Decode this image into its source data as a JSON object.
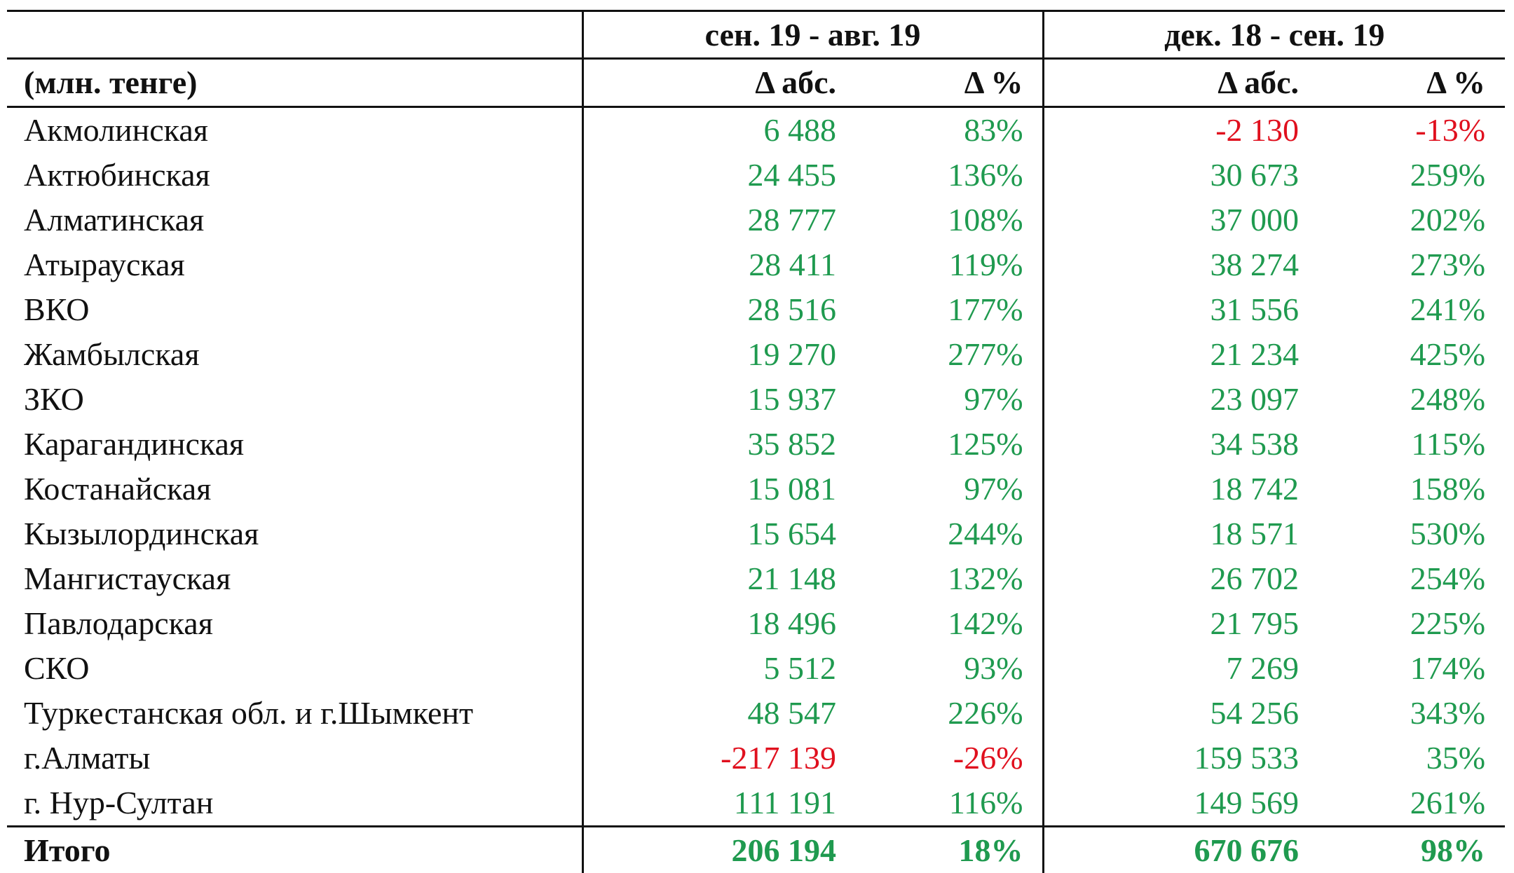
{
  "header": {
    "groups": [
      "сен. 19 - авг. 19",
      "дек. 18 - сен. 19"
    ],
    "unit": "(млн. тенге)",
    "subheaders": [
      "Δ абс.",
      "Δ %",
      "Δ абс.",
      "Δ %"
    ]
  },
  "rows": [
    [
      "Акмолинская",
      "6 488",
      "83%",
      "-2 130",
      "-13%"
    ],
    [
      "Актюбинская",
      "24 455",
      "136%",
      "30 673",
      "259%"
    ],
    [
      "Алматинская",
      "28 777",
      "108%",
      "37 000",
      "202%"
    ],
    [
      "Атырауская",
      "28 411",
      "119%",
      "38 274",
      "273%"
    ],
    [
      "ВКО",
      "28 516",
      "177%",
      "31 556",
      "241%"
    ],
    [
      "Жамбылская",
      "19 270",
      "277%",
      "21 234",
      "425%"
    ],
    [
      "ЗКО",
      "15 937",
      "97%",
      "23 097",
      "248%"
    ],
    [
      "Карагандинская",
      "35 852",
      "125%",
      "34 538",
      "115%"
    ],
    [
      "Костанайская",
      "15 081",
      "97%",
      "18 742",
      "158%"
    ],
    [
      "Кызылординская",
      "15 654",
      "244%",
      "18 571",
      "530%"
    ],
    [
      "Мангистауская",
      "21 148",
      "132%",
      "26 702",
      "254%"
    ],
    [
      "Павлодарская",
      "18 496",
      "142%",
      "21 795",
      "225%"
    ],
    [
      "СКО",
      "5 512",
      "93%",
      "7 269",
      "174%"
    ],
    [
      "Туркестанская обл. и г.Шымкент",
      "48 547",
      "226%",
      "54 256",
      "343%"
    ],
    [
      "г.Алматы",
      "-217 139",
      "-26%",
      "159 533",
      "35%"
    ],
    [
      "г. Нур-Султан",
      "111 191",
      "116%",
      "149 569",
      "261%"
    ]
  ],
  "total": [
    "Итого",
    "206 194",
    "18%",
    "670 676",
    "98%"
  ]
}
